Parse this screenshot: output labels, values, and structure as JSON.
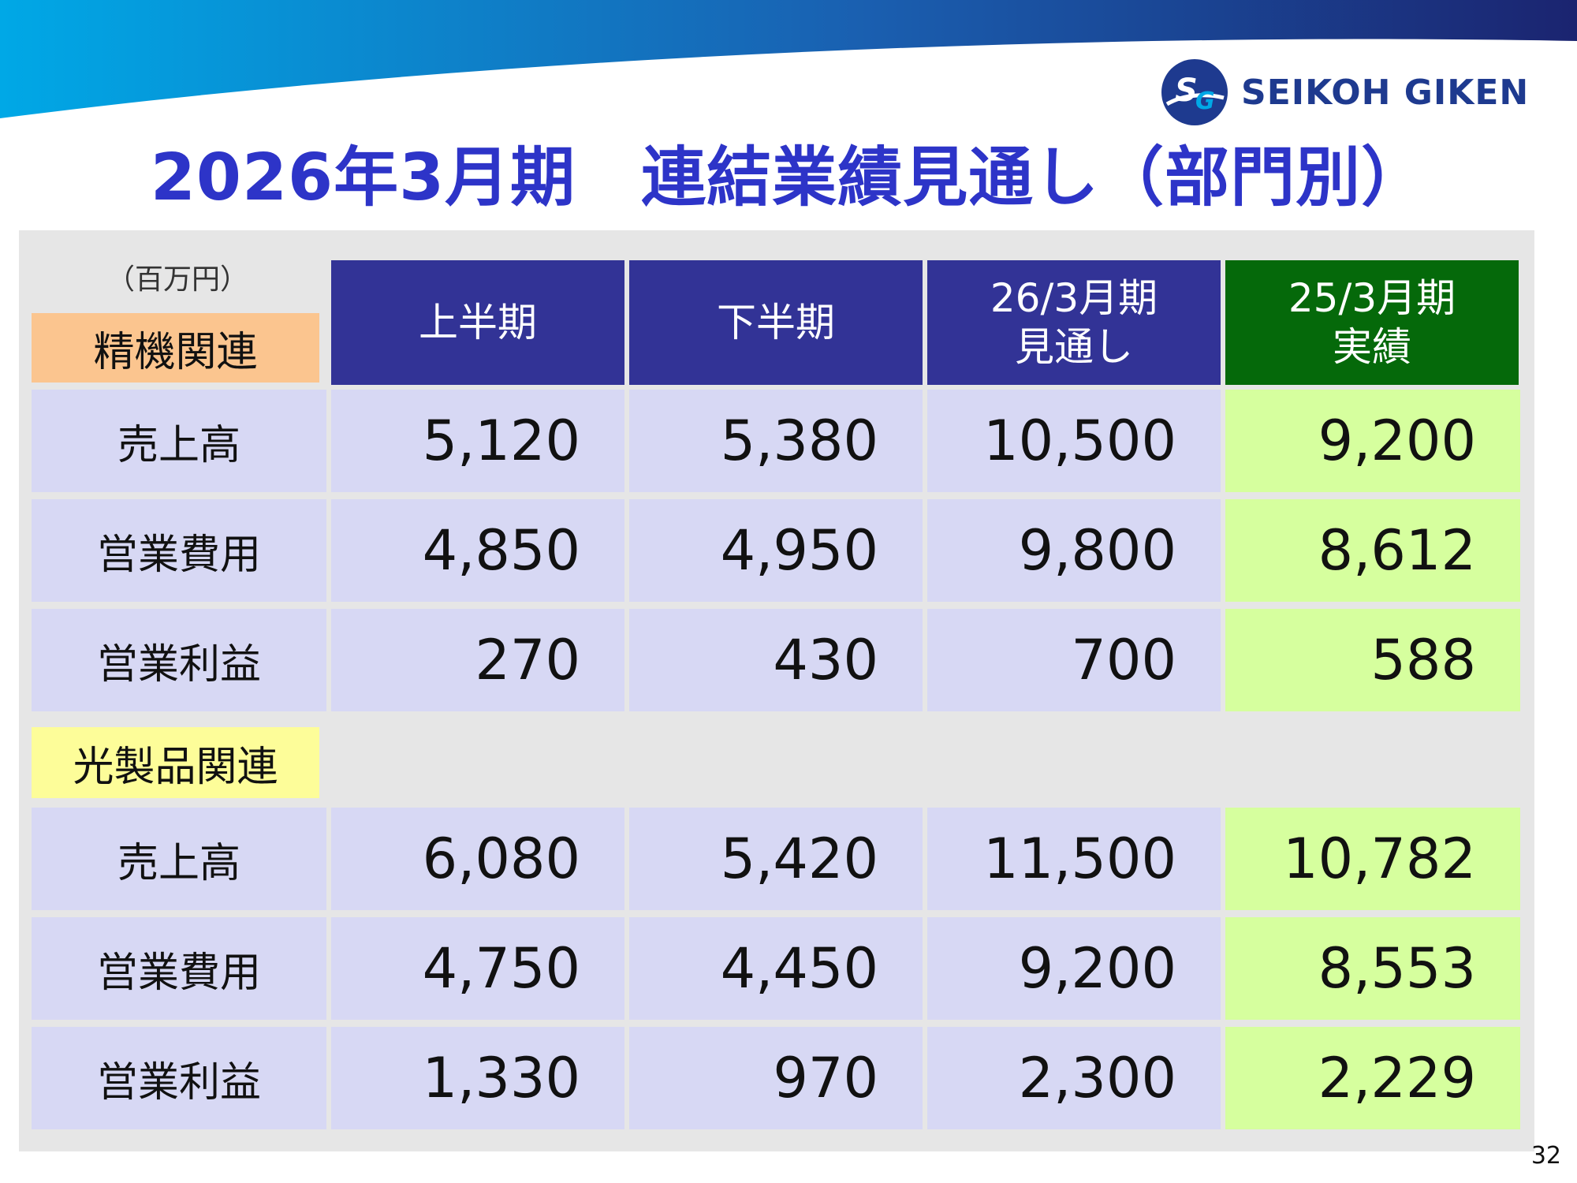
{
  "brand": {
    "name": "SEIKOH GIKEN",
    "mark": "SG"
  },
  "colors": {
    "title": "#2d34c8",
    "header_blue": "#323396",
    "header_green": "#05690a",
    "cell_lavender": "#d7d8f4",
    "cell_lime": "#d6ff9e",
    "section1_bg": "#fbc58f",
    "section2_bg": "#fdfd99"
  },
  "title": "2026年3月期　連結業績見通し（部門別）",
  "table": {
    "unit": "（百万円）",
    "columns": [
      {
        "line1": "上半期",
        "line2": ""
      },
      {
        "line1": "下半期",
        "line2": ""
      },
      {
        "line1": "26/3月期",
        "line2": "見通し"
      },
      {
        "line1": "25/3月期",
        "line2": "実績"
      }
    ],
    "sections": [
      {
        "label": "精機関連",
        "rows": [
          {
            "label": "売上高",
            "values": [
              "5,120",
              "5,380",
              "10,500",
              "9,200"
            ]
          },
          {
            "label": "営業費用",
            "values": [
              "4,850",
              "4,950",
              "9,800",
              "8,612"
            ]
          },
          {
            "label": "営業利益",
            "values": [
              "270",
              "430",
              "700",
              "588"
            ]
          }
        ]
      },
      {
        "label": "光製品関連",
        "rows": [
          {
            "label": "売上高",
            "values": [
              "6,080",
              "5,420",
              "11,500",
              "10,782"
            ]
          },
          {
            "label": "営業費用",
            "values": [
              "4,750",
              "4,450",
              "9,200",
              "8,553"
            ]
          },
          {
            "label": "営業利益",
            "values": [
              "1,330",
              "970",
              "2,300",
              "2,229"
            ]
          }
        ]
      }
    ]
  },
  "page_number": "32"
}
